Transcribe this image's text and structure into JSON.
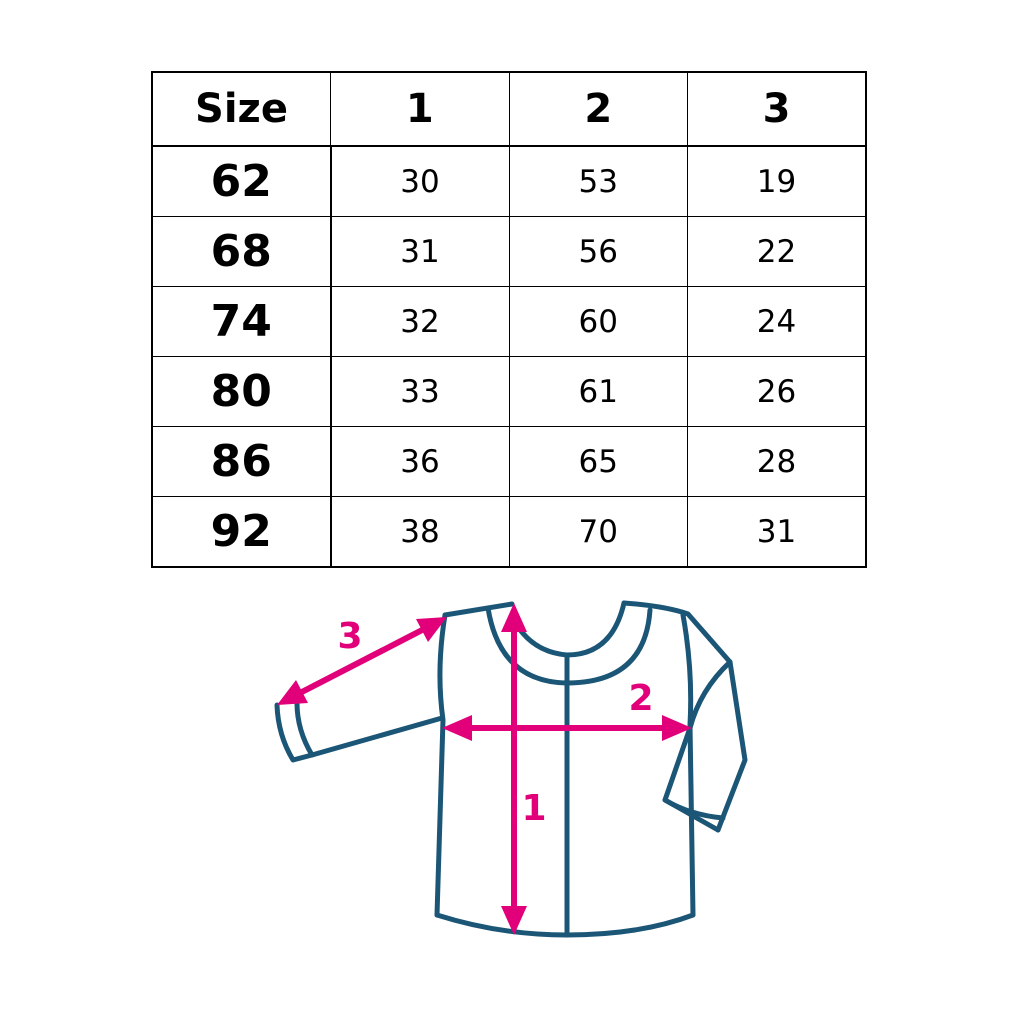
{
  "table": {
    "headers": [
      "Size",
      "1",
      "2",
      "3"
    ],
    "rows": [
      [
        "62",
        "30",
        "53",
        "19"
      ],
      [
        "68",
        "31",
        "56",
        "22"
      ],
      [
        "74",
        "32",
        "60",
        "24"
      ],
      [
        "80",
        "33",
        "61",
        "26"
      ],
      [
        "86",
        "36",
        "65",
        "28"
      ],
      [
        "92",
        "38",
        "70",
        "31"
      ]
    ]
  },
  "diagram": {
    "labels": {
      "length": "1",
      "chest": "2",
      "sleeve": "3"
    },
    "colors": {
      "garment_outline": "#1c5677",
      "measure_arrows": "#e2007a"
    }
  }
}
